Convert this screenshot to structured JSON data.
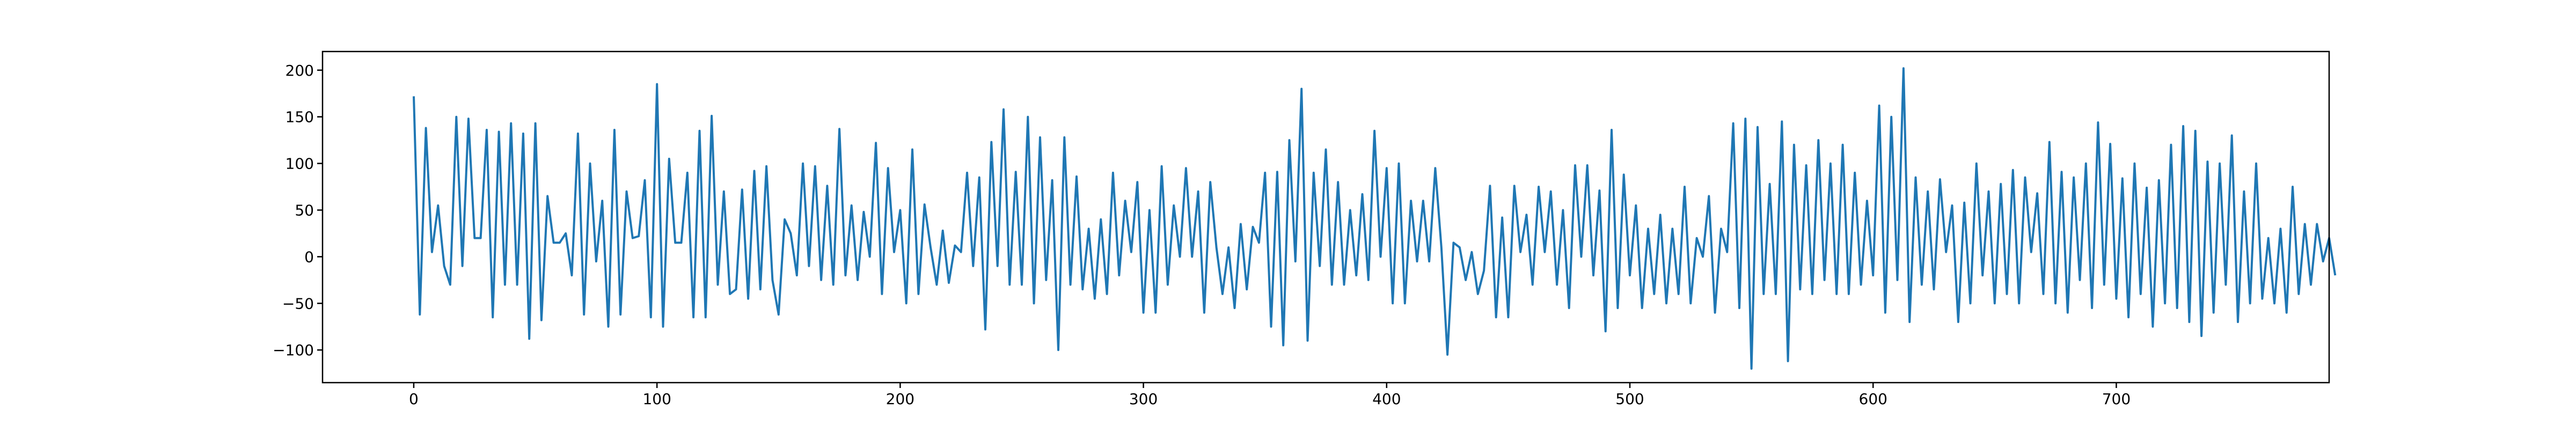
{
  "chart_data": {
    "type": "line",
    "title": "",
    "xlabel": "",
    "ylabel": "",
    "xlim": [
      -37.5,
      787.5
    ],
    "ylim": [
      -135,
      220
    ],
    "x_ticks": [
      0,
      100,
      200,
      300,
      400,
      500,
      600,
      700
    ],
    "y_ticks": [
      -100,
      -50,
      0,
      50,
      100,
      150,
      200
    ],
    "x_tick_labels": [
      "0",
      "100",
      "200",
      "300",
      "400",
      "500",
      "600",
      "700"
    ],
    "y_tick_labels": [
      "−100",
      "−50",
      "0",
      "50",
      "100",
      "150",
      "200"
    ],
    "grid": false,
    "legend": "none",
    "series": [
      {
        "color": "#1f77b4",
        "x_start": 0,
        "x_step": 2.5,
        "values": [
          172,
          -62,
          138,
          5,
          55,
          -10,
          -30,
          150,
          -10,
          148,
          20,
          20,
          136,
          -65,
          134,
          -30,
          143,
          -30,
          132,
          -88,
          143,
          -68,
          65,
          15,
          15,
          25,
          -20,
          132,
          -62,
          100,
          -5,
          60,
          -75,
          136,
          -62,
          70,
          20,
          22,
          82,
          -65,
          185,
          -75,
          105,
          15,
          15,
          90,
          -65,
          135,
          -65,
          151,
          -30,
          70,
          -40,
          -35,
          72,
          -45,
          92,
          -35,
          97,
          -25,
          -62,
          40,
          25,
          -20,
          100,
          -10,
          97,
          -25,
          76,
          -30,
          137,
          -20,
          55,
          -25,
          48,
          0,
          122,
          -40,
          95,
          5,
          50,
          -50,
          115,
          -40,
          56,
          10,
          -30,
          28,
          -28,
          12,
          5,
          90,
          -10,
          85,
          -78,
          123,
          -10,
          158,
          -30,
          91,
          -30,
          150,
          -50,
          128,
          -25,
          82,
          -100,
          128,
          -30,
          86,
          -35,
          30,
          -45,
          40,
          -40,
          90,
          -20,
          60,
          5,
          80,
          -60,
          50,
          -60,
          97,
          -30,
          55,
          0,
          95,
          0,
          70,
          -60,
          80,
          10,
          -40,
          10,
          -55,
          35,
          -35,
          32,
          15,
          90,
          -75,
          91,
          -95,
          125,
          -5,
          180,
          -90,
          90,
          -10,
          115,
          -30,
          80,
          -30,
          50,
          -20,
          67,
          -25,
          135,
          0,
          95,
          -50,
          100,
          -50,
          60,
          -5,
          60,
          -5,
          95,
          10,
          -105,
          15,
          10,
          -25,
          5,
          -40,
          -15,
          76,
          -65,
          42,
          -65,
          76,
          5,
          45,
          -30,
          75,
          5,
          70,
          -30,
          50,
          -55,
          98,
          0,
          98,
          -20,
          71,
          -80,
          136,
          -55,
          88,
          -20,
          55,
          -55,
          30,
          -40,
          45,
          -50,
          30,
          -40,
          75,
          -50,
          20,
          0,
          65,
          -60,
          30,
          5,
          143,
          -55,
          148,
          -120,
          139,
          -40,
          78,
          -40,
          145,
          -112,
          120,
          -35,
          98,
          -40,
          125,
          -25,
          100,
          -40,
          120,
          -40,
          90,
          -30,
          60,
          -20,
          162,
          -60,
          150,
          -25,
          202,
          -70,
          85,
          -30,
          70,
          -35,
          83,
          5,
          55,
          -70,
          58,
          -50,
          100,
          -20,
          70,
          -50,
          78,
          -40,
          93,
          -50,
          85,
          5,
          68,
          -40,
          123,
          -50,
          91,
          -60,
          85,
          -25,
          100,
          -55,
          144,
          -30,
          121,
          -45,
          84,
          -65,
          100,
          -40,
          74,
          -75,
          82,
          -50,
          120,
          -55,
          140,
          -70,
          135,
          -85,
          102,
          -60,
          100,
          -30,
          130,
          -70,
          70,
          -50,
          100,
          -45,
          20,
          -50,
          30,
          -60,
          75,
          -40,
          35,
          -30,
          35,
          -5,
          20,
          -20
        ]
      }
    ]
  }
}
